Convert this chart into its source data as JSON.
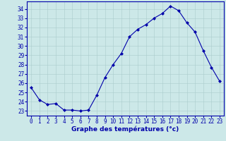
{
  "hours": [
    0,
    1,
    2,
    3,
    4,
    5,
    6,
    7,
    8,
    9,
    10,
    11,
    12,
    13,
    14,
    15,
    16,
    17,
    18,
    19,
    20,
    21,
    22,
    23
  ],
  "temperatures": [
    25.5,
    24.2,
    23.7,
    23.8,
    23.1,
    23.1,
    23.0,
    23.1,
    24.7,
    26.6,
    28.0,
    29.2,
    31.0,
    31.8,
    32.3,
    33.0,
    33.5,
    34.3,
    33.8,
    32.5,
    31.5,
    29.5,
    27.7,
    26.2
  ],
  "line_color": "#0000aa",
  "marker": "D",
  "marker_size": 2.0,
  "bg_color": "#cce8e8",
  "grid_color": "#aacccc",
  "xlabel": "Graphe des températures (°c)",
  "xlabel_color": "#0000aa",
  "tick_color": "#0000aa",
  "ylim": [
    22.5,
    34.8
  ],
  "yticks": [
    23,
    24,
    25,
    26,
    27,
    28,
    29,
    30,
    31,
    32,
    33,
    34
  ],
  "axis_spine_color": "#0000aa",
  "tick_fontsize": 5.5,
  "xlabel_fontsize": 6.5
}
